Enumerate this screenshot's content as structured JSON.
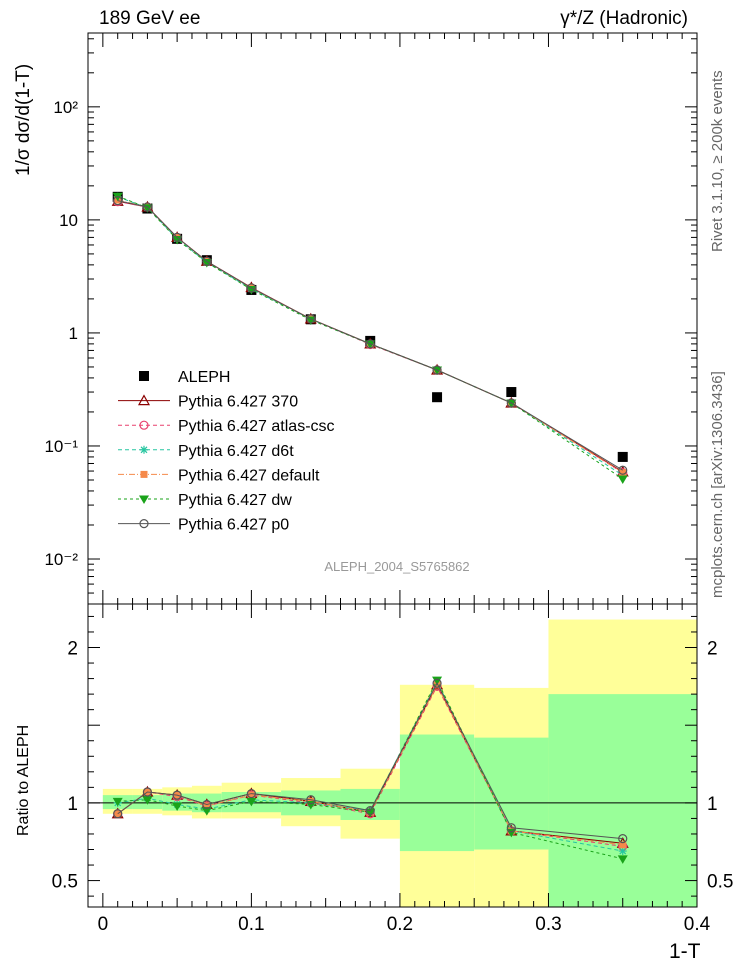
{
  "header": {
    "left": "189 GeV ee",
    "right": "γ*/Z (Hadronic)"
  },
  "side_labels": {
    "rivet": "Rivet 3.1.10, ≥ 200k events",
    "mcplots": "mcplots.cern.ch [arXiv:1306.3436]"
  },
  "chart_data": [
    {
      "type": "line",
      "panel": "main",
      "title": "",
      "xlabel": "1-T",
      "ylabel": "1/σ  dσ/d(1-T)",
      "yscale": "log",
      "xlim": [
        -0.01,
        0.4
      ],
      "ylim": [
        0.004,
        450
      ],
      "y_ticks": [
        {
          "value": 0.01,
          "label": "10⁻²"
        },
        {
          "value": 0.1,
          "label": "10⁻¹"
        },
        {
          "value": 1,
          "label": "1"
        },
        {
          "value": 10,
          "label": "10"
        },
        {
          "value": 100,
          "label": "10²"
        }
      ],
      "watermark": "ALEPH_2004_S5765862",
      "legend_position": "lower-left",
      "x": [
        0.01,
        0.03,
        0.05,
        0.07,
        0.1,
        0.14,
        0.18,
        0.225,
        0.275,
        0.35
      ],
      "series": [
        {
          "name": "ALEPH",
          "color": "#000000",
          "marker": "square",
          "dash": "",
          "values": [
            16.0,
            12.6,
            6.8,
            4.4,
            2.4,
            1.32,
            0.85,
            0.27,
            0.3,
            0.08
          ]
        },
        {
          "name": "Pythia 6.427 370",
          "color": "#8b0000",
          "marker": "triangle-open",
          "dash": "",
          "values": [
            14.6,
            13.0,
            7.0,
            4.3,
            2.52,
            1.33,
            0.8,
            0.47,
            0.24,
            0.059
          ]
        },
        {
          "name": "Pythia 6.427 atlas-csc",
          "color": "#e8416e",
          "marker": "circle-open",
          "dash": "4,3",
          "values": [
            14.5,
            13.0,
            7.0,
            4.3,
            2.5,
            1.33,
            0.79,
            0.47,
            0.24,
            0.058
          ]
        },
        {
          "name": "Pythia 6.427 d6t",
          "color": "#26c6a0",
          "marker": "star",
          "dash": "4,3",
          "values": [
            16.0,
            12.8,
            6.8,
            4.2,
            2.45,
            1.32,
            0.8,
            0.47,
            0.24,
            0.055
          ]
        },
        {
          "name": "Pythia 6.427 default",
          "color": "#f5894a",
          "marker": "square-filled",
          "dash": "6,2,1,2",
          "values": [
            15.0,
            13.0,
            7.0,
            4.3,
            2.5,
            1.33,
            0.8,
            0.47,
            0.24,
            0.058
          ]
        },
        {
          "name": "Pythia 6.427 dw",
          "color": "#1aa31a",
          "marker": "triangle-down",
          "dash": "3,3",
          "values": [
            16.2,
            12.8,
            6.7,
            4.2,
            2.42,
            1.3,
            0.8,
            0.47,
            0.24,
            0.051
          ]
        },
        {
          "name": "Pythia 6.427 p0",
          "color": "#555555",
          "marker": "circle-open",
          "dash": "",
          "values": [
            14.8,
            13.0,
            7.0,
            4.3,
            2.5,
            1.33,
            0.8,
            0.47,
            0.24,
            0.061
          ]
        }
      ]
    },
    {
      "type": "line",
      "panel": "ratio",
      "xlabel": "1-T",
      "ylabel": "Ratio to ALEPH",
      "yscale": "linear",
      "xlim": [
        -0.01,
        0.4
      ],
      "ylim": [
        0.33,
        2.28
      ],
      "x_ticks": [
        {
          "value": 0,
          "label": "0"
        },
        {
          "value": 0.1,
          "label": "0.1"
        },
        {
          "value": 0.2,
          "label": "0.2"
        },
        {
          "value": 0.3,
          "label": "0.3"
        },
        {
          "value": 0.4,
          "label": "0.4"
        }
      ],
      "y_ticks": [
        {
          "value": 0.5,
          "label": "0.5"
        },
        {
          "value": 1,
          "label": "1"
        },
        {
          "value": 1.5,
          "label": ""
        },
        {
          "value": 2,
          "label": "2"
        }
      ],
      "bins": [
        {
          "lo": 0.0,
          "hi": 0.02,
          "inner": [
            0.96,
            1.05
          ],
          "outer": [
            0.93,
            1.09
          ]
        },
        {
          "lo": 0.02,
          "hi": 0.04,
          "inner": [
            0.96,
            1.05
          ],
          "outer": [
            0.93,
            1.09
          ]
        },
        {
          "lo": 0.04,
          "hi": 0.06,
          "inner": [
            0.95,
            1.06
          ],
          "outer": [
            0.92,
            1.1
          ]
        },
        {
          "lo": 0.06,
          "hi": 0.08,
          "inner": [
            0.94,
            1.06
          ],
          "outer": [
            0.9,
            1.11
          ]
        },
        {
          "lo": 0.08,
          "hi": 0.12,
          "inner": [
            0.94,
            1.07
          ],
          "outer": [
            0.9,
            1.13
          ]
        },
        {
          "lo": 0.12,
          "hi": 0.16,
          "inner": [
            0.92,
            1.08
          ],
          "outer": [
            0.85,
            1.16
          ]
        },
        {
          "lo": 0.16,
          "hi": 0.2,
          "inner": [
            0.89,
            1.09
          ],
          "outer": [
            0.77,
            1.22
          ]
        },
        {
          "lo": 0.2,
          "hi": 0.25,
          "inner": [
            0.69,
            1.44
          ],
          "outer": [
            0.33,
            1.76
          ]
        },
        {
          "lo": 0.25,
          "hi": 0.3,
          "inner": [
            0.7,
            1.42
          ],
          "outer": [
            0.33,
            1.74
          ]
        },
        {
          "lo": 0.3,
          "hi": 0.4,
          "inner": [
            0.33,
            1.7
          ],
          "outer": [
            0.33,
            2.18
          ]
        }
      ],
      "x": [
        0.01,
        0.03,
        0.05,
        0.07,
        0.1,
        0.14,
        0.18,
        0.225,
        0.275,
        0.35
      ],
      "series": [
        {
          "name": "Pythia 6.427 370",
          "color": "#8b0000",
          "marker": "triangle-open",
          "dash": "",
          "values": [
            0.93,
            1.07,
            1.05,
            0.99,
            1.06,
            1.01,
            0.94,
            1.76,
            0.82,
            0.74
          ]
        },
        {
          "name": "Pythia 6.427 atlas-csc",
          "color": "#e8416e",
          "marker": "circle-open",
          "dash": "4,3",
          "values": [
            0.93,
            1.07,
            1.04,
            0.98,
            1.05,
            1.0,
            0.93,
            1.75,
            0.82,
            0.72
          ]
        },
        {
          "name": "Pythia 6.427 d6t",
          "color": "#26c6a0",
          "marker": "star",
          "dash": "4,3",
          "values": [
            1.0,
            1.03,
            0.99,
            0.96,
            1.02,
            1.0,
            0.95,
            1.78,
            0.82,
            0.69
          ]
        },
        {
          "name": "Pythia 6.427 default",
          "color": "#f5894a",
          "marker": "square-filled",
          "dash": "6,2,1,2",
          "values": [
            0.93,
            1.07,
            1.05,
            0.98,
            1.05,
            1.01,
            0.94,
            1.76,
            0.82,
            0.73
          ]
        },
        {
          "name": "Pythia 6.427 dw",
          "color": "#1aa31a",
          "marker": "triangle-down",
          "dash": "3,3",
          "values": [
            1.01,
            1.02,
            0.98,
            0.95,
            1.01,
            0.99,
            0.94,
            1.79,
            0.81,
            0.64
          ]
        },
        {
          "name": "Pythia 6.427 p0",
          "color": "#555555",
          "marker": "circle-open",
          "dash": "",
          "values": [
            0.93,
            1.07,
            1.05,
            0.99,
            1.06,
            1.02,
            0.95,
            1.77,
            0.84,
            0.77
          ]
        }
      ]
    }
  ]
}
